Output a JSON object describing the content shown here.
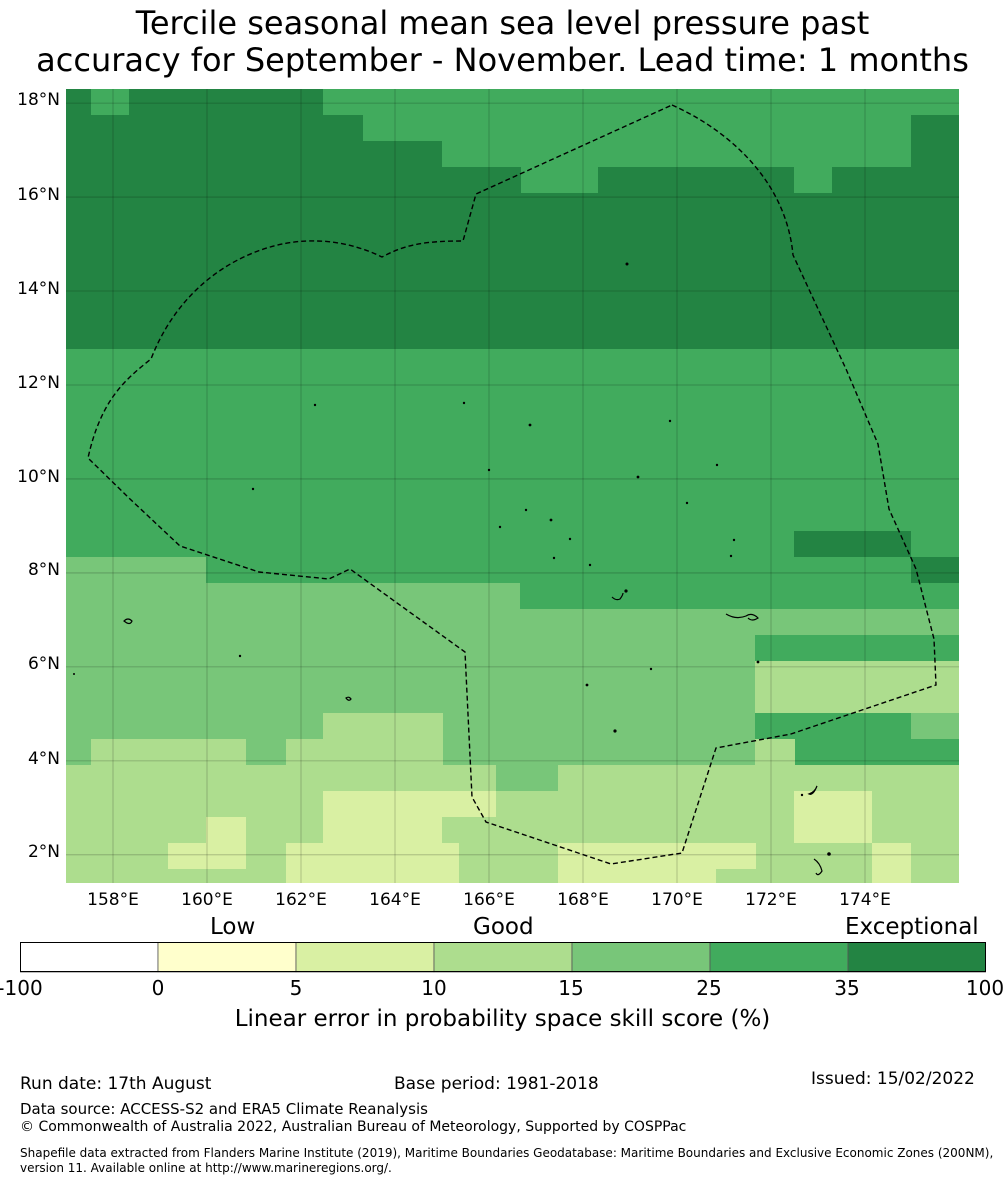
{
  "title": {
    "line1": "Tercile seasonal mean sea level pressure past",
    "line2": "accuracy for September - November. Lead time: 1 months"
  },
  "map": {
    "lat_labels": [
      "18°N",
      "16°N",
      "14°N",
      "12°N",
      "10°N",
      "8°N",
      "6°N",
      "4°N",
      "2°N"
    ],
    "lon_labels": [
      "158°E",
      "160°E",
      "162°E",
      "164°E",
      "166°E",
      "168°E",
      "170°E",
      "172°E",
      "174°E"
    ],
    "lon_range": [
      157.0,
      176.0
    ],
    "lat_range": [
      1.4,
      18.3
    ],
    "grid_lines": true,
    "colors": {
      "white": "#ffffff",
      "c0": "#ffffcc",
      "c5": "#d9f0a3",
      "c10": "#addd8e",
      "c15": "#78c679",
      "c25": "#41ab5d",
      "c35": "#238443"
    }
  },
  "legend": {
    "headers": {
      "low": "Low",
      "good": "Good",
      "exceptional": "Exceptional"
    },
    "bins": [
      "#ffffff",
      "#ffffcc",
      "#d9f0a3",
      "#addd8e",
      "#78c679",
      "#41ab5d",
      "#238443"
    ],
    "ticks": [
      "-100",
      "0",
      "5",
      "10",
      "15",
      "25",
      "35",
      "100"
    ],
    "label": "Linear error in probability space skill score (%)"
  },
  "footer": {
    "run_date": "Run date: 17th August",
    "base_period": "Base period: 1981-2018",
    "issued": "Issued: 15/02/2022",
    "data_source": "Data source: ACCESS-S2 and ERA5 Climate Reanalysis",
    "copyright": "© Commonwealth of Australia 2022, Australian Bureau of Meteorology, Supported by COSPPac",
    "shapefile": "Shapefile data extracted from Flanders Marine Institute (2019), Maritime Boundaries Geodatabase: Maritime Boundaries and Exclusive Economic Zones (200NM), version 11. Available online at http://www.marineregions.org/."
  }
}
